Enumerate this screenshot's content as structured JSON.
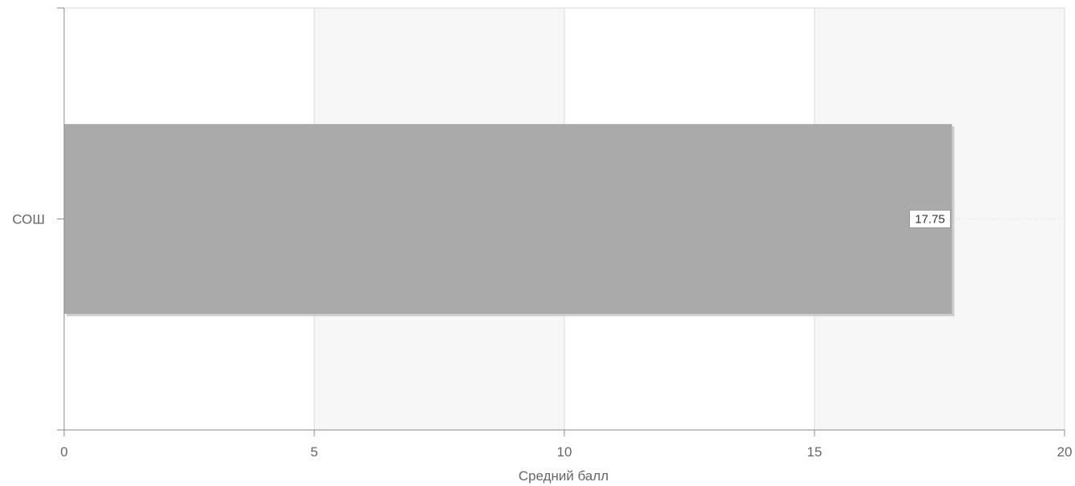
{
  "chart_data": {
    "type": "bar",
    "orientation": "horizontal",
    "categories": [
      "СОШ"
    ],
    "series": [
      {
        "values": [
          17.75
        ]
      }
    ],
    "data_labels": [
      "17.75"
    ],
    "title": "",
    "xlabel": "Средний балл",
    "ylabel": "",
    "xlim": [
      0,
      20
    ],
    "x_ticks": [
      0,
      5,
      10,
      15,
      20
    ],
    "x_tick_labels": [
      "0",
      "5",
      "10",
      "15",
      "20"
    ],
    "grid": true,
    "alternating_bands": true,
    "legend": "none",
    "colors": {
      "bar": "#aaaaaa",
      "bar_shadow": "#d0d0d0",
      "band_light": "#ffffff",
      "band_shaded": "#f7f7f7",
      "grid": "#d9d9d9",
      "axis": "#888888",
      "text": "#666666",
      "label_border": "#999999"
    }
  }
}
